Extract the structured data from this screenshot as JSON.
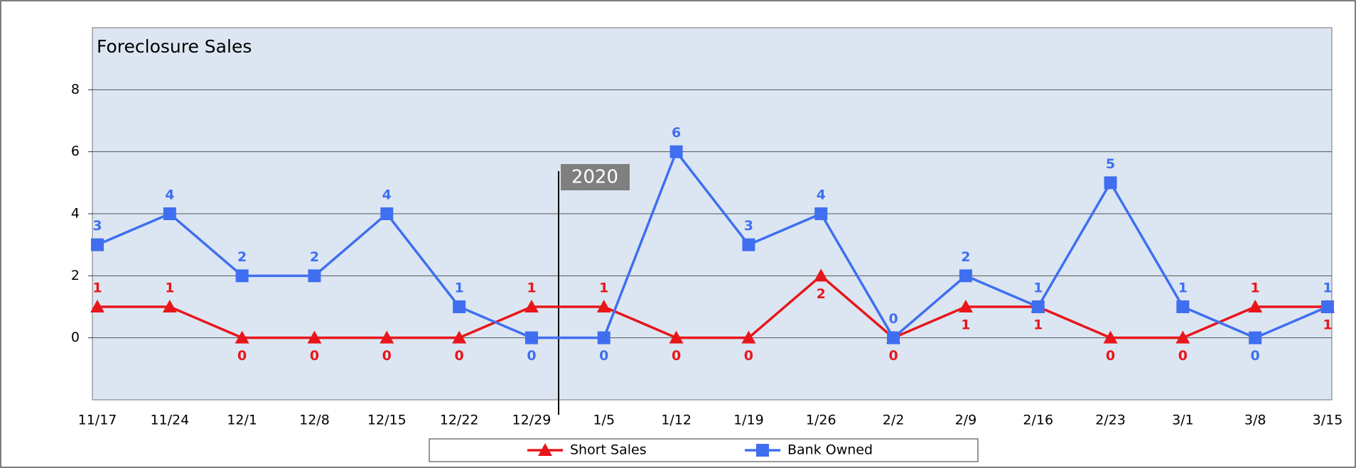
{
  "chart_data": {
    "type": "line",
    "title": "Foreclosure Sales",
    "categories": [
      "11/17",
      "11/24",
      "12/1",
      "12/8",
      "12/15",
      "12/22",
      "12/29",
      "1/5",
      "1/12",
      "1/19",
      "1/26",
      "2/2",
      "2/9",
      "2/16",
      "2/23",
      "3/1",
      "3/8",
      "3/15"
    ],
    "series": [
      {
        "name": "Short Sales",
        "color": "#e8161b",
        "marker": "triangle",
        "values": [
          1,
          1,
          0,
          0,
          0,
          0,
          1,
          1,
          0,
          0,
          2,
          0,
          1,
          1,
          0,
          0,
          1,
          1
        ]
      },
      {
        "name": "Bank Owned",
        "color": "#3f6ff0",
        "marker": "square",
        "values": [
          3,
          4,
          2,
          2,
          4,
          1,
          0,
          0,
          6,
          3,
          4,
          0,
          2,
          1,
          5,
          1,
          0,
          1
        ]
      }
    ],
    "ylim": [
      -2,
      10
    ],
    "yticks": [
      0,
      2,
      4,
      6,
      8
    ],
    "grid": true,
    "legend": "bottom",
    "annotation": "2020"
  }
}
